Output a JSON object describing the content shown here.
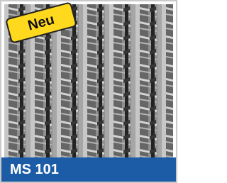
{
  "badge": "Neu",
  "label": "MS 101"
}
